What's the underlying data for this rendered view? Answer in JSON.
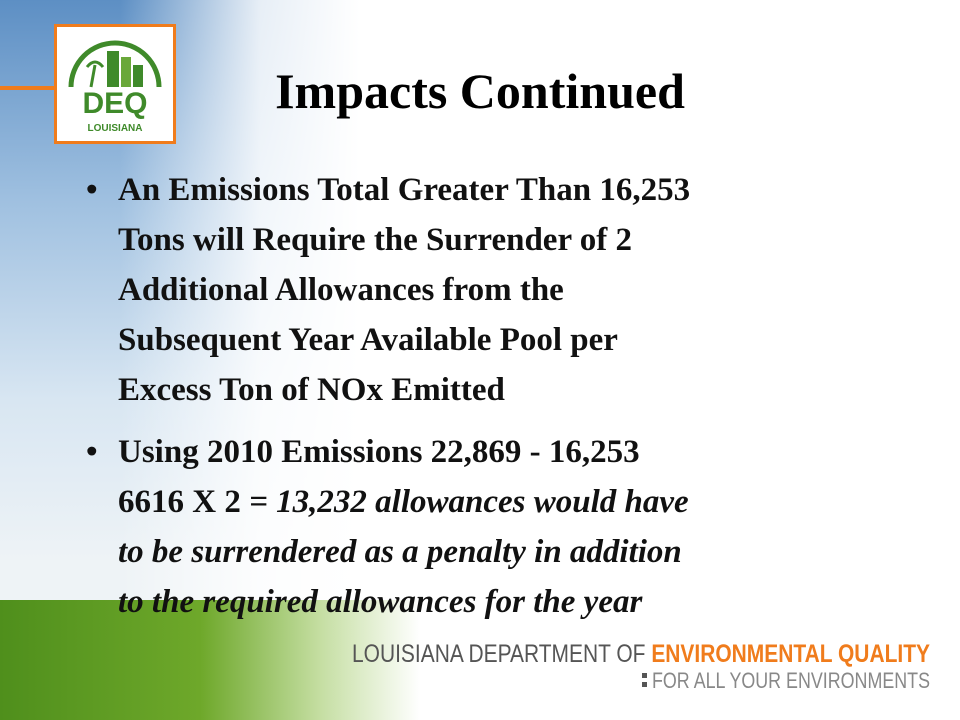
{
  "logo": {
    "name": "DEQ",
    "state": "LOUISIANA"
  },
  "title": "Impacts Continued",
  "bullets": [
    {
      "lines": [
        "An Emissions Total Greater Than 16,253",
        "Tons will Require the Surrender of 2",
        "Additional  Allowances from the",
        "Subsequent Year Available Pool per",
        "Excess Ton of NOx Emitted"
      ]
    },
    {
      "lines": [
        "Using 2010 Emissions 22,869 - 16,253",
        "6616 X 2 ",
        "= 13,232 allowances would have",
        "to be surrendered as a penalty in addition",
        "to the required allowances for the year"
      ]
    }
  ],
  "footer": {
    "department": "LOUISIANA DEPARTMENT OF",
    "agency": "ENVIRONMENTAL QUALITY",
    "tagline": "FOR ALL YOUR ENVIRONMENTS"
  }
}
